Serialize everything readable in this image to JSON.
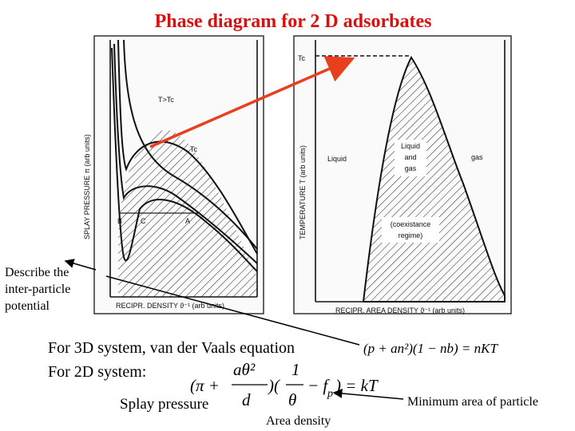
{
  "header": {
    "title": "Phase diagram for 2 D adsorbates"
  },
  "left_figure": {
    "y_axis_label": "SPLAY PRESSURE π (arb units)",
    "x_axis_label": "RECIPR. DENSITY ϑ⁻¹ (arb units)",
    "labels": {
      "above_critical": "T>Tc",
      "critical": "Tc",
      "point_b": "B",
      "point_c": "C",
      "point_a": "A"
    }
  },
  "right_figure": {
    "y_axis_label": "TEMPERATURE T (arb units)",
    "x_axis_label": "RECIPR. AREA DENSITY ϑ⁻¹ (arb units)",
    "labels": {
      "critical": "Tc",
      "liquid": "Liquid",
      "liquid_gas": [
        "Liquid",
        "and",
        "gas"
      ],
      "gas": "gas",
      "coexistence": [
        "(coexistance",
        "regime)"
      ]
    }
  },
  "annotation": {
    "lines": [
      "Describe the",
      "inter-particle",
      "potential"
    ]
  },
  "body": {
    "line_3d": "For 3D system, van der Vaals equation",
    "equation_3d": "(p + an²)(1 − nb) = nKT",
    "line_2d": "For 2D system:",
    "equation_2d": {
      "left": "(π +",
      "numerator": "aθ²",
      "denominator": "d",
      "mid": ")(",
      "one": "1",
      "theta": "θ",
      "minus_f": "− f",
      "subscript": "p",
      "right": ") = kT"
    },
    "splay_pressure": "Splay pressure",
    "area_density": "Area density",
    "minimum_area": "Minimum area of particle"
  }
}
